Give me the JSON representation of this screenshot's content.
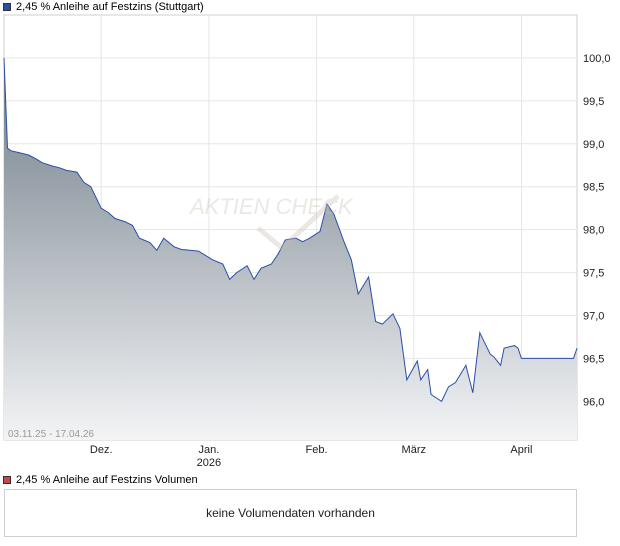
{
  "legend": {
    "price_label": "2,45 % Anleihe auf Festzins (Stuttgart)",
    "price_color": "#2a4ea8",
    "volume_label": "2,45 % Anleihe auf Festzins Volumen",
    "volume_color": "#c84848"
  },
  "watermark": "AKTIEN CHECK",
  "volume_panel": {
    "message": "keine Volumendaten vorhanden"
  },
  "chart_data": {
    "type": "area",
    "date_range": "03.11.25 - 17.04.26",
    "ylim": [
      95.55,
      100.5
    ],
    "y_ticks": [
      "100,0",
      "99,5",
      "99,0",
      "98,5",
      "98,0",
      "97,5",
      "97,0",
      "96,5",
      "96,0"
    ],
    "y_tick_values": [
      100.0,
      99.5,
      99.0,
      98.5,
      98.0,
      97.5,
      97.0,
      96.5,
      96.0
    ],
    "x_ticks": [
      {
        "label": "Dez.",
        "date": "2025-12-01"
      },
      {
        "label": "Jan.",
        "sublabel": "2026",
        "date": "2026-01-01"
      },
      {
        "label": "Feb.",
        "date": "2026-02-01"
      },
      {
        "label": "März",
        "date": "2026-03-01"
      },
      {
        "label": "April",
        "date": "2026-04-01"
      }
    ],
    "line_color": "#2a4ea8",
    "series": [
      {
        "x": [
          "2025-11-03",
          "2025-11-04",
          "2025-11-05",
          "2025-11-07",
          "2025-11-10",
          "2025-11-12",
          "2025-11-14",
          "2025-11-17",
          "2025-11-19",
          "2025-11-21",
          "2025-11-24",
          "2025-11-26",
          "2025-11-28",
          "2025-12-01",
          "2025-12-03",
          "2025-12-05",
          "2025-12-08",
          "2025-12-10",
          "2025-12-12",
          "2025-12-15",
          "2025-12-17",
          "2025-12-19",
          "2025-12-22",
          "2025-12-24",
          "2025-12-29",
          "2026-01-02",
          "2026-01-05",
          "2026-01-07",
          "2026-01-09",
          "2026-01-12",
          "2026-01-14",
          "2026-01-16",
          "2026-01-19",
          "2026-01-21",
          "2026-01-23",
          "2026-01-26",
          "2026-01-28",
          "2026-01-30",
          "2026-02-02",
          "2026-02-04",
          "2026-02-06",
          "2026-02-09",
          "2026-02-11",
          "2026-02-13",
          "2026-02-16",
          "2026-02-18",
          "2026-02-20",
          "2026-02-23",
          "2026-02-25",
          "2026-02-27",
          "2026-03-02",
          "2026-03-03",
          "2026-03-05",
          "2026-03-06",
          "2026-03-09",
          "2026-03-11",
          "2026-03-13",
          "2026-03-16",
          "2026-03-18",
          "2026-03-20",
          "2026-03-23",
          "2026-03-24",
          "2026-03-26",
          "2026-03-27",
          "2026-03-30",
          "2026-03-31",
          "2026-04-01",
          "2026-04-02",
          "2026-04-06",
          "2026-04-07",
          "2026-04-08",
          "2026-04-09",
          "2026-04-10",
          "2026-04-13",
          "2026-04-14",
          "2026-04-15",
          "2026-04-16",
          "2026-04-17"
        ],
        "values": [
          100.0,
          98.95,
          98.92,
          98.9,
          98.87,
          98.83,
          98.78,
          98.74,
          98.72,
          98.69,
          98.67,
          98.55,
          98.5,
          98.25,
          98.2,
          98.13,
          98.09,
          98.05,
          97.9,
          97.85,
          97.76,
          97.9,
          97.8,
          97.77,
          97.75,
          97.65,
          97.6,
          97.42,
          97.5,
          97.58,
          97.42,
          97.55,
          97.6,
          97.72,
          97.88,
          97.9,
          97.86,
          97.9,
          97.98,
          98.3,
          98.18,
          97.85,
          97.65,
          97.25,
          97.45,
          96.93,
          96.9,
          97.02,
          96.85,
          96.25,
          96.47,
          96.25,
          96.37,
          96.08,
          96.0,
          96.17,
          96.22,
          96.42,
          96.1,
          96.8,
          96.55,
          96.52,
          96.42,
          96.62,
          96.65,
          96.62,
          96.5,
          96.5,
          96.5,
          96.5,
          96.5,
          96.5,
          96.5,
          96.5,
          96.5,
          96.5,
          96.5,
          96.62
        ]
      }
    ]
  }
}
